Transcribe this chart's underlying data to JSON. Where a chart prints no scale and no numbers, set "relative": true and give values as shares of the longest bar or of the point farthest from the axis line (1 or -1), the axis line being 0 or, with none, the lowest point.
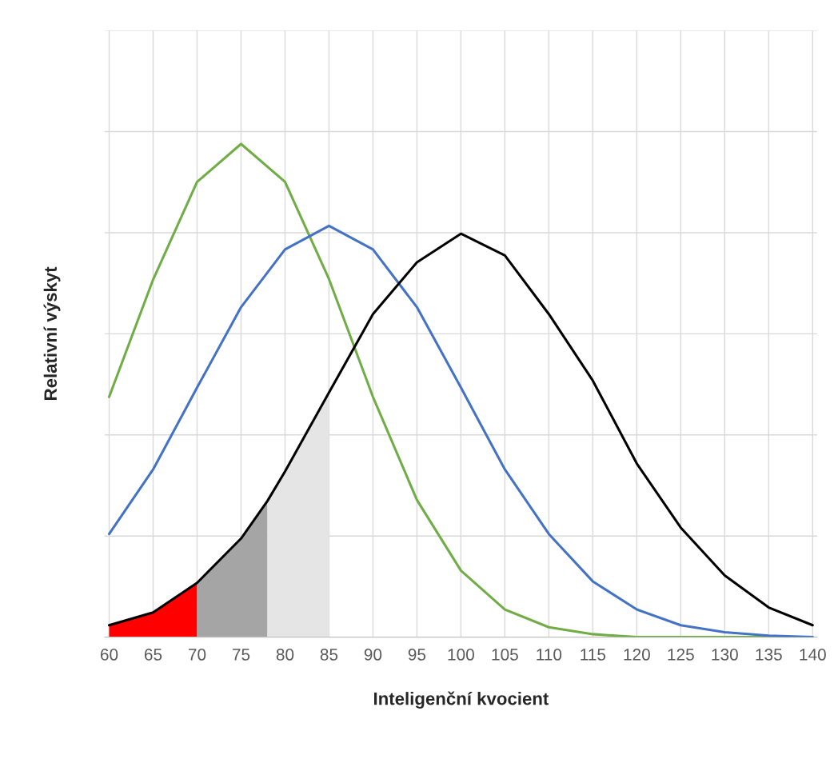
{
  "chart_data": {
    "type": "line",
    "relative": true,
    "xlabel": "Inteligenční kvocient",
    "ylabel": "Relativní výskyt",
    "xlim": [
      59.5,
      140.5
    ],
    "xticks": [
      60,
      65,
      70,
      75,
      80,
      85,
      90,
      95,
      100,
      105,
      110,
      115,
      120,
      125,
      130,
      135,
      140
    ],
    "grid": true,
    "legend": false,
    "series": [
      {
        "type": "area",
        "color": "#ff0000",
        "x": [
          60,
          65,
          70
        ],
        "values": [
          0.024,
          0.05,
          0.11
        ]
      },
      {
        "type": "area",
        "color": "#a5a5a5",
        "x": [
          70,
          75,
          78
        ],
        "values": [
          0.11,
          0.2,
          0.276
        ]
      },
      {
        "type": "area",
        "color": "#e5e5e5",
        "x": [
          78,
          80,
          85
        ],
        "values": [
          0.276,
          0.336,
          0.496
        ]
      },
      {
        "color": "#70ad47",
        "x": [
          60,
          65,
          70,
          75,
          80,
          85,
          90,
          95,
          100,
          105,
          110,
          115,
          120,
          125,
          130,
          135,
          140
        ],
        "values": [
          0.487,
          0.725,
          0.923,
          1.0,
          0.923,
          0.726,
          0.487,
          0.278,
          0.135,
          0.056,
          0.02,
          0.006,
          0,
          0,
          0,
          0,
          0
        ]
      },
      {
        "color": "#4472c4",
        "x": [
          60,
          65,
          70,
          75,
          80,
          85,
          90,
          95,
          100,
          105,
          110,
          115,
          120,
          125,
          130,
          135,
          140
        ],
        "values": [
          0.209,
          0.34,
          0.506,
          0.669,
          0.786,
          0.834,
          0.786,
          0.669,
          0.506,
          0.34,
          0.209,
          0.113,
          0.056,
          0.024,
          0.01,
          0.003,
          0
        ]
      },
      {
        "color": "#000000",
        "x": [
          60,
          65,
          70,
          75,
          78,
          80,
          85,
          90,
          95,
          100,
          105,
          110,
          115,
          120,
          125,
          130,
          135,
          140
        ],
        "values": [
          0.024,
          0.05,
          0.11,
          0.2,
          0.276,
          0.336,
          0.496,
          0.655,
          0.76,
          0.818,
          0.774,
          0.655,
          0.52,
          0.352,
          0.222,
          0.125,
          0.06,
          0.024
        ]
      }
    ]
  }
}
